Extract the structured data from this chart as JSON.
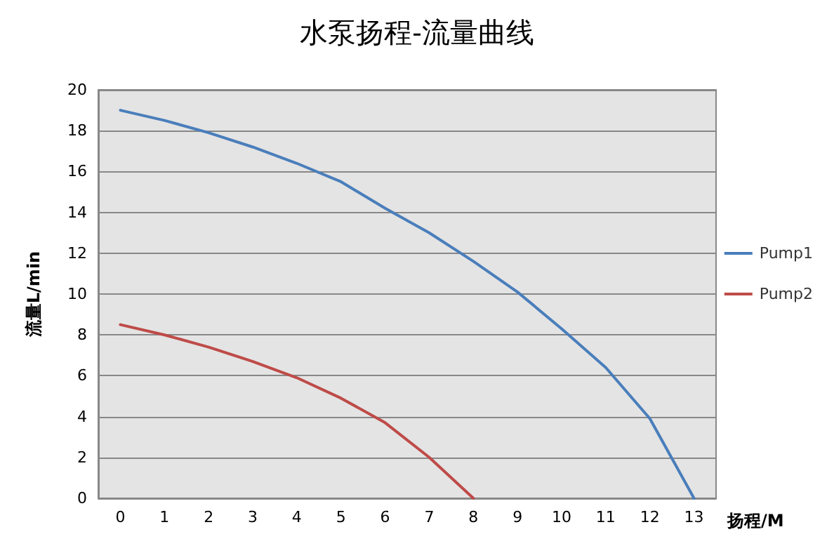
{
  "chart_data": {
    "type": "line",
    "title": "水泵扬程-流量曲线",
    "xlabel": "扬程/M",
    "ylabel": "流量L/min",
    "categories": [
      "0",
      "1",
      "2",
      "3",
      "4",
      "5",
      "6",
      "7",
      "8",
      "9",
      "10",
      "11",
      "12",
      "13"
    ],
    "series": [
      {
        "name": "Pump1",
        "color": "#4a7ebb",
        "values": [
          19,
          18.5,
          17.9,
          17.2,
          16.4,
          15.5,
          14.2,
          13,
          11.6,
          10.1,
          8.3,
          6.4,
          3.9,
          0
        ]
      },
      {
        "name": "Pump2",
        "color": "#be4b48",
        "values": [
          8.5,
          8,
          7.4,
          6.7,
          5.9,
          4.9,
          3.7,
          2,
          0,
          null,
          null,
          null,
          null,
          null
        ]
      }
    ],
    "ylim": [
      0,
      20
    ],
    "yticks": [
      0,
      2,
      4,
      6,
      8,
      10,
      12,
      14,
      16,
      18,
      20
    ],
    "grid": "y",
    "legend": "right",
    "marker": "none",
    "line_style": "solid"
  }
}
